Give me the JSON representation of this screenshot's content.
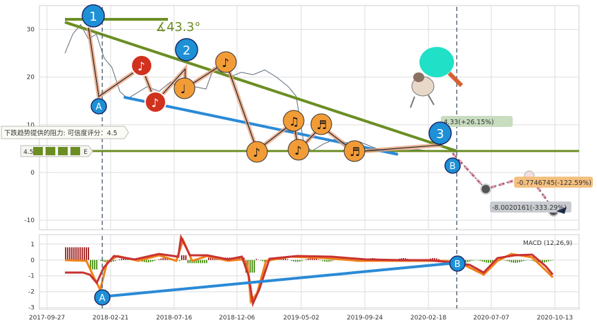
{
  "chart_data": [
    {
      "type": "line",
      "panel": "price",
      "ylim": [
        -12,
        35
      ],
      "yticks": [
        -10,
        0,
        10,
        20,
        30
      ],
      "grid": true,
      "legend": "",
      "support_level": 4.5,
      "resistance_trendline": {
        "from": [
          0.0,
          31.5
        ],
        "to": [
          1.0,
          4.5
        ]
      },
      "support_trendline": {
        "from": [
          0.15,
          15.8
        ],
        "to": [
          0.85,
          3.8
        ]
      },
      "price_series_points": [
        [
          0.0,
          25
        ],
        [
          0.02,
          29
        ],
        [
          0.04,
          31
        ],
        [
          0.06,
          28
        ],
        [
          0.08,
          29
        ],
        [
          0.1,
          24
        ],
        [
          0.12,
          22
        ],
        [
          0.14,
          17
        ],
        [
          0.16,
          15.5
        ],
        [
          0.18,
          16.5
        ],
        [
          0.21,
          18
        ],
        [
          0.24,
          17
        ],
        [
          0.27,
          19
        ],
        [
          0.3,
          17
        ],
        [
          0.33,
          18
        ],
        [
          0.36,
          17.5
        ],
        [
          0.38,
          22
        ],
        [
          0.4,
          21
        ],
        [
          0.42,
          20
        ],
        [
          0.45,
          21
        ],
        [
          0.48,
          20.5
        ],
        [
          0.51,
          21.5
        ],
        [
          0.54,
          20
        ],
        [
          0.57,
          18
        ],
        [
          0.59,
          16
        ],
        [
          0.61,
          6
        ],
        [
          0.63,
          4.5
        ],
        [
          0.66,
          6
        ],
        [
          0.69,
          7
        ],
        [
          0.72,
          5
        ],
        [
          0.75,
          6.5
        ],
        [
          0.78,
          5.5
        ],
        [
          0.81,
          4.6
        ],
        [
          0.85,
          4.5
        ],
        [
          0.9,
          4.8
        ],
        [
          0.95,
          4.4
        ],
        [
          1.0,
          4.3
        ]
      ],
      "forecast_points": [
        [
          1.0,
          4.33
        ],
        [
          1.13,
          -3.4
        ],
        [
          1.37,
          -0.77
        ],
        [
          1.5,
          -8.0
        ]
      ],
      "annotations": {
        "angle": "∡43.3°",
        "resistance_text": "下跌趋势提供的阻力: 可信度评分：4.5",
        "support_badge": "4.5",
        "support_badge_tail": "E",
        "price_label_1": "4.33(+26.15%)",
        "price_label_2": "-0.7746745(-122.59%)",
        "price_label_3": "-8.0020161(-333.29%)"
      },
      "markers": {
        "circle_numbers": [
          "1",
          "2",
          "3"
        ],
        "letters": [
          "A",
          "B"
        ]
      }
    },
    {
      "type": "line",
      "panel": "macd",
      "title": "MACD (12,26,9)",
      "ylim": [
        -3.1,
        1.6
      ],
      "yticks": [
        -3,
        -2,
        -1,
        0,
        1
      ],
      "grid": true,
      "xticks": [
        "2017-09-27",
        "2018-02-21",
        "2018-07-16",
        "2018-12-06",
        "2019-05-02",
        "2019-09-24",
        "2020-02-18",
        "2020-07-07",
        "2020-10-13"
      ],
      "trend_line": {
        "from": [
          0.148,
          -2.4
        ],
        "to": [
          0.66,
          -0.3
        ]
      },
      "markers": {
        "letters": [
          "A",
          "B"
        ]
      }
    }
  ]
}
